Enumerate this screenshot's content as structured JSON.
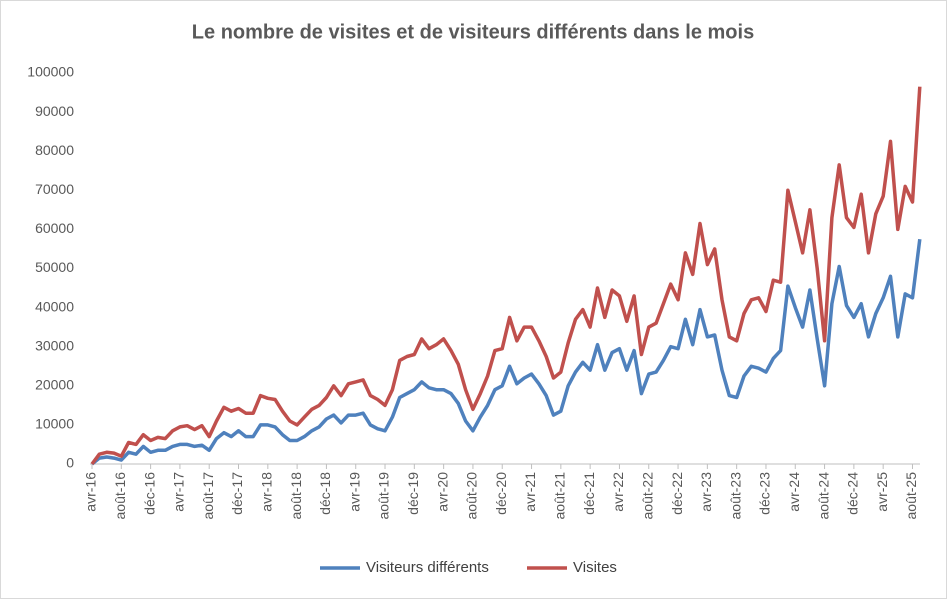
{
  "chart_data": {
    "type": "line",
    "title": "Le nombre de visites et de visiteurs différents dans le mois",
    "categories": [
      "avr-16",
      null,
      null,
      null,
      "août-16",
      null,
      null,
      null,
      "déc-16",
      null,
      null,
      null,
      "avr-17",
      null,
      null,
      null,
      "août-17",
      null,
      null,
      null,
      "déc-17",
      null,
      null,
      null,
      "avr-18",
      null,
      null,
      null,
      "août-18",
      null,
      null,
      null,
      "déc-18",
      null,
      null,
      null,
      "avr-19",
      null,
      null,
      null,
      "août-19",
      null,
      null,
      null,
      "déc-19",
      null,
      null,
      null,
      "avr-20",
      null,
      null,
      null,
      "août-20",
      null,
      null,
      null,
      "déc-20",
      null,
      null,
      null,
      "avr-21",
      null,
      null,
      null,
      "août-21",
      null,
      null,
      null,
      "déc-21",
      null,
      null,
      null,
      "avr-22",
      null,
      null,
      null,
      "août-22",
      null,
      null,
      null,
      "déc-22",
      null,
      null,
      null,
      "avr-23",
      null,
      null,
      null,
      "août-23",
      null,
      null,
      null,
      "déc-23",
      null,
      null,
      null,
      "avr-24",
      null,
      null,
      null,
      "août-24",
      null,
      null,
      null,
      "déc-24",
      null,
      null,
      null,
      "avr-25",
      null,
      null,
      null,
      "août-25",
      null
    ],
    "series": [
      {
        "name": "Visiteurs différents",
        "color": "#4f81bd",
        "values": [
          0,
          1500,
          1800,
          1500,
          1000,
          3000,
          2500,
          4500,
          3000,
          3500,
          3500,
          4500,
          5000,
          5000,
          4500,
          4800,
          3500,
          6500,
          8000,
          7000,
          8500,
          7000,
          7000,
          10000,
          10000,
          9500,
          7500,
          6000,
          6000,
          7000,
          8500,
          9500,
          11500,
          12500,
          10500,
          12500,
          12500,
          13000,
          10000,
          9000,
          8500,
          12000,
          17000,
          18000,
          19000,
          21000,
          19500,
          19000,
          19000,
          18000,
          15500,
          11000,
          8500,
          12000,
          15000,
          19000,
          20000,
          25000,
          20500,
          22000,
          23000,
          20500,
          17500,
          12500,
          13500,
          20000,
          23500,
          26000,
          24000,
          30500,
          24000,
          28500,
          29500,
          24000,
          29000,
          18000,
          23000,
          23500,
          26500,
          30000,
          29500,
          37000,
          30500,
          39500,
          32500,
          33000,
          24000,
          17500,
          17000,
          22500,
          25000,
          24500,
          23500,
          27000,
          29000,
          45500,
          40000,
          35000,
          44500,
          32000,
          20000,
          41000,
          50500,
          40500,
          37500,
          41000,
          32500,
          38500,
          42500,
          48000,
          32500,
          43500,
          42500,
          57500
        ]
      },
      {
        "name": "Visites",
        "color": "#c0504d",
        "values": [
          0,
          2500,
          3000,
          2800,
          2000,
          5500,
          5000,
          7500,
          6000,
          6800,
          6500,
          8500,
          9500,
          9800,
          8800,
          9800,
          7000,
          11000,
          14500,
          13500,
          14200,
          13000,
          13000,
          17500,
          16800,
          16500,
          13500,
          11000,
          10000,
          12000,
          14000,
          15000,
          17000,
          20000,
          17500,
          20500,
          21000,
          21500,
          17500,
          16500,
          15000,
          19000,
          26500,
          27500,
          28000,
          32000,
          29500,
          30500,
          32000,
          29000,
          25500,
          19000,
          14000,
          18000,
          22500,
          29000,
          29500,
          37500,
          31500,
          35000,
          35000,
          31500,
          27500,
          22000,
          23500,
          31000,
          37000,
          39500,
          35000,
          45000,
          37500,
          44500,
          43000,
          36500,
          43000,
          28000,
          35000,
          36000,
          41000,
          46000,
          42000,
          54000,
          48500,
          61500,
          51000,
          55000,
          42000,
          32500,
          31500,
          38500,
          42000,
          42500,
          39000,
          47000,
          46500,
          70000,
          62000,
          54000,
          65000,
          50000,
          31500,
          63000,
          76500,
          63000,
          60500,
          69000,
          54000,
          64000,
          68500,
          82500,
          60000,
          71000,
          67000,
          96500
        ]
      }
    ],
    "ylim": [
      0,
      100000
    ],
    "yticks": [
      0,
      10000,
      20000,
      30000,
      40000,
      50000,
      60000,
      70000,
      80000,
      90000,
      100000
    ],
    "grid": false,
    "legend": "bottom"
  }
}
